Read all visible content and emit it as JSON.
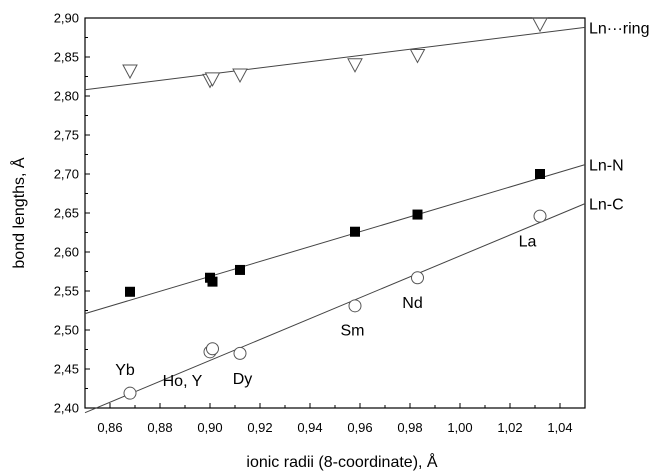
{
  "chart_data": {
    "type": "scatter",
    "xlabel": "ionic radii (8-coordinate), Å",
    "ylabel": "bond lengths, Å",
    "xlim": [
      0.85,
      1.05
    ],
    "ylim": [
      2.4,
      2.9
    ],
    "x_ticks": [
      "0,86",
      "0,88",
      "0,90",
      "0,92",
      "0,94",
      "0,96",
      "0,98",
      "1,00",
      "1,02",
      "1,04"
    ],
    "y_ticks": [
      "2,40",
      "2,45",
      "2,50",
      "2,55",
      "2,60",
      "2,65",
      "2,70",
      "2,75",
      "2,80",
      "2,85",
      "2,90"
    ],
    "series": [
      {
        "name": "Ln···ring",
        "marker": "triangle-down-open",
        "points": [
          [
            0.868,
            2.832
          ],
          [
            0.9,
            2.82
          ],
          [
            0.901,
            2.822
          ],
          [
            0.912,
            2.827
          ],
          [
            0.958,
            2.84
          ],
          [
            0.983,
            2.852
          ],
          [
            1.032,
            2.892
          ]
        ],
        "fit": [
          [
            0.85,
            2.808
          ],
          [
            1.05,
            2.888
          ]
        ]
      },
      {
        "name": "Ln-N",
        "marker": "square-filled",
        "points": [
          [
            0.868,
            2.549
          ],
          [
            0.9,
            2.567
          ],
          [
            0.901,
            2.562
          ],
          [
            0.912,
            2.577
          ],
          [
            0.958,
            2.626
          ],
          [
            0.983,
            2.648
          ],
          [
            1.032,
            2.7
          ]
        ],
        "fit": [
          [
            0.85,
            2.521
          ],
          [
            1.05,
            2.712
          ]
        ]
      },
      {
        "name": "Ln-C",
        "marker": "circle-open",
        "points": [
          [
            0.868,
            2.419
          ],
          [
            0.9,
            2.472
          ],
          [
            0.901,
            2.476
          ],
          [
            0.912,
            2.47
          ],
          [
            0.958,
            2.531
          ],
          [
            0.983,
            2.567
          ],
          [
            1.032,
            2.646
          ]
        ],
        "fit": [
          [
            0.85,
            2.394
          ],
          [
            1.05,
            2.662
          ]
        ]
      }
    ],
    "annotations": [
      {
        "text": "Yb",
        "x": 0.866,
        "y": 2.442
      },
      {
        "text": "Ho, Y",
        "x": 0.889,
        "y": 2.428
      },
      {
        "text": "Dy",
        "x": 0.913,
        "y": 2.431
      },
      {
        "text": "Sm",
        "x": 0.957,
        "y": 2.493
      },
      {
        "text": "Nd",
        "x": 0.981,
        "y": 2.528
      },
      {
        "text": "La",
        "x": 1.027,
        "y": 2.607
      }
    ],
    "grid": false,
    "legend": "none"
  }
}
